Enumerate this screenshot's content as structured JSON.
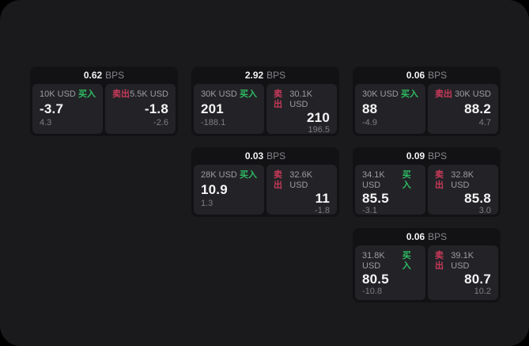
{
  "labels": {
    "bps_unit": "BPS",
    "buy": "买入",
    "sell": "卖出"
  },
  "colors": {
    "screen_background": "#1a1a1c",
    "card_background": "#121214",
    "panel_background": "#232327",
    "buy_accent": "#2ebd63",
    "sell_accent": "#c9395a",
    "primary_text": "#f5f5f6",
    "muted_text": "#9b9ca1",
    "faint_text": "#7c7d82"
  },
  "cards": [
    {
      "row": 1,
      "col": 1,
      "bps": "0.62",
      "buy": {
        "size": "10K USD",
        "price": "-3.7",
        "sub": "4.3"
      },
      "sell": {
        "size": "5.5K USD",
        "price": "-1.8",
        "sub": "-2.6"
      }
    },
    {
      "row": 1,
      "col": 2,
      "bps": "2.92",
      "buy": {
        "size": "30K USD",
        "price": "201",
        "sub": "-188.1"
      },
      "sell": {
        "size": "30.1K USD",
        "price": "210",
        "sub": "196.5"
      }
    },
    {
      "row": 1,
      "col": 3,
      "bps": "0.06",
      "buy": {
        "size": "30K USD",
        "price": "88",
        "sub": "-4.9"
      },
      "sell": {
        "size": "30K USD",
        "price": "88.2",
        "sub": "4.7"
      }
    },
    {
      "row": 2,
      "col": 2,
      "bps": "0.03",
      "buy": {
        "size": "28K USD",
        "price": "10.9",
        "sub": "1.3"
      },
      "sell": {
        "size": "32.6K USD",
        "price": "11",
        "sub": "-1.8"
      }
    },
    {
      "row": 2,
      "col": 3,
      "bps": "0.09",
      "buy": {
        "size": "34.1K USD",
        "price": "85.5",
        "sub": "-3.1"
      },
      "sell": {
        "size": "32.8K USD",
        "price": "85.8",
        "sub": "3.0"
      }
    },
    {
      "row": 3,
      "col": 3,
      "bps": "0.06",
      "buy": {
        "size": "31.8K USD",
        "price": "80.5",
        "sub": "-10.8"
      },
      "sell": {
        "size": "39.1K USD",
        "price": "80.7",
        "sub": "10.2"
      }
    }
  ]
}
